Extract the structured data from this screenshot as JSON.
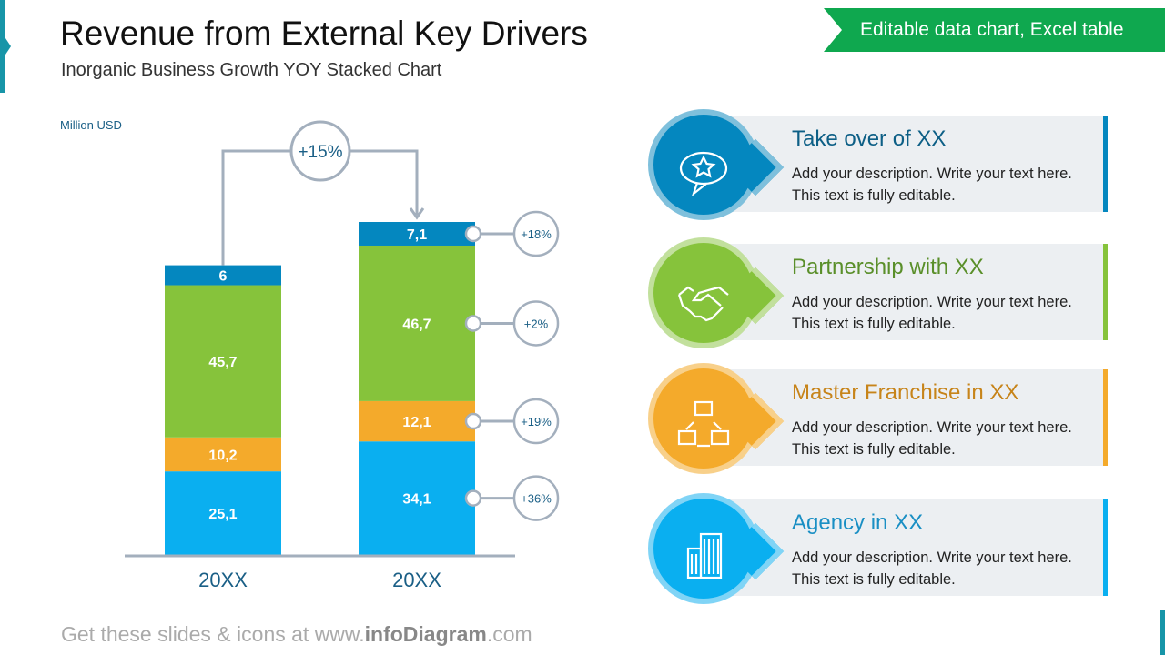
{
  "header": {
    "title": "Revenue from External Key Drivers",
    "subtitle": "Inorganic Business Growth YOY Stacked Chart",
    "badge": "Editable data chart, Excel table"
  },
  "chart_data": {
    "type": "bar",
    "stacked": true,
    "ylabel": "Million USD",
    "categories": [
      "20XX",
      "20XX"
    ],
    "series": [
      {
        "color": "#0aaff0",
        "values": [
          25.1,
          34.1
        ],
        "labels": [
          "25,1",
          "34,1"
        ],
        "growth": "+36%"
      },
      {
        "color": "#f4aa2b",
        "values": [
          10.2,
          12.1
        ],
        "labels": [
          "10,2",
          "12,1"
        ],
        "growth": "+19%"
      },
      {
        "color": "#86c33b",
        "values": [
          45.7,
          46.7
        ],
        "labels": [
          "45,7",
          "46,7"
        ],
        "growth": "+2%"
      },
      {
        "color": "#0487bf",
        "values": [
          6,
          7.1
        ],
        "labels": [
          "6",
          "7,1"
        ],
        "growth": "+18%"
      }
    ],
    "total_growth": "+15%"
  },
  "cards": [
    {
      "title": "Take over of XX",
      "desc": "Add your description. Write your text here. This text is fully editable.",
      "color": "#0487bf",
      "ring": "#7fc0dc",
      "title_color": "#0d5f86",
      "icon": "speech-bubble-star-icon"
    },
    {
      "title": "Partnership with XX",
      "desc": "Add your description. Write your text here. This text is fully editable.",
      "color": "#86c33b",
      "ring": "#c2e09d",
      "title_color": "#5a8f2a",
      "icon": "handshake-icon"
    },
    {
      "title": "Master Franchise  in XX",
      "desc": "Add your description. Write your text here. This text is fully editable.",
      "color": "#f4aa2b",
      "ring": "#f8d08a",
      "title_color": "#c7841a",
      "icon": "franchise-shops-icon"
    },
    {
      "title": "Agency in XX",
      "desc": "Add your description. Write your text here. This text is fully editable.",
      "color": "#0aaff0",
      "ring": "#80d4f6",
      "title_color": "#1a8fc4",
      "icon": "office-building-icon"
    }
  ],
  "footer": {
    "prefix": "Get these slides & icons at www.",
    "brand": "infoDiagram",
    "suffix": ".com"
  }
}
